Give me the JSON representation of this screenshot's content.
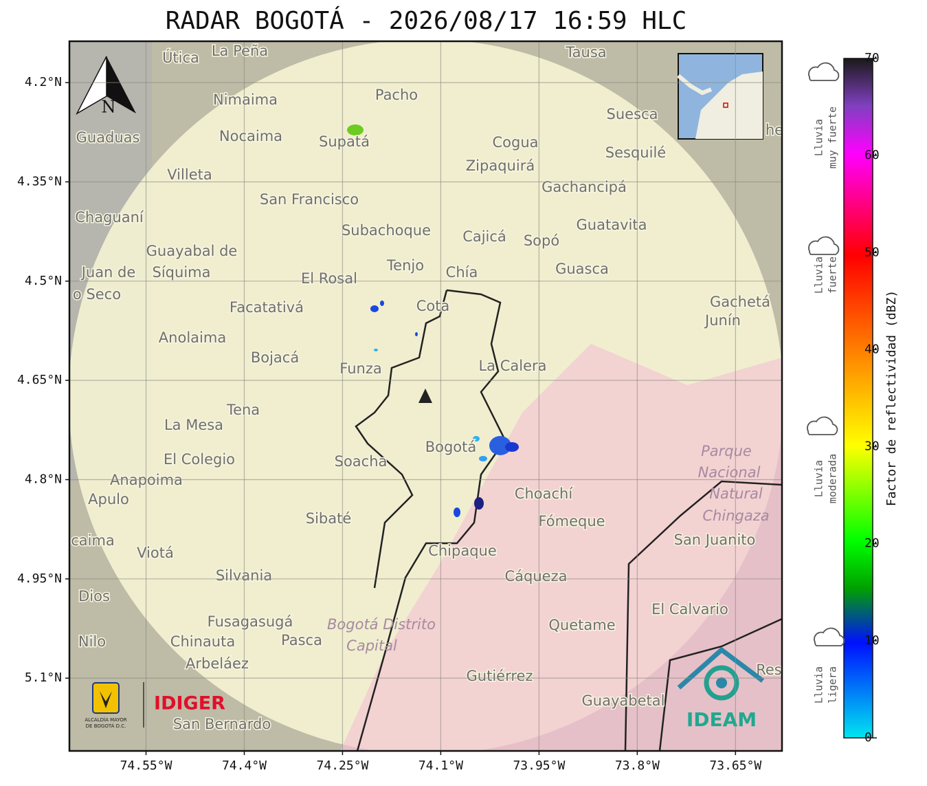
{
  "title": "RADAR BOGOTÁ - 2026/08/17 16:59 HLC",
  "map": {
    "lon_range": [
      -74.667,
      -73.579
    ],
    "lat_range": [
      4.1375,
      5.21
    ],
    "lon_ticks": [
      {
        "value": -74.55,
        "label": "74.55°W"
      },
      {
        "value": -74.4,
        "label": "74.4°W"
      },
      {
        "value": -74.25,
        "label": "74.25°W"
      },
      {
        "value": -74.1,
        "label": "74.1°W"
      },
      {
        "value": -73.95,
        "label": "73.95°W"
      },
      {
        "value": -73.8,
        "label": "73.8°W"
      },
      {
        "value": -73.65,
        "label": "73.65°W"
      }
    ],
    "lat_ticks": [
      {
        "value": 5.1,
        "label": "5.1°N"
      },
      {
        "value": 4.95,
        "label": "4.95°N"
      },
      {
        "value": 4.8,
        "label": "4.8°N"
      },
      {
        "value": 4.65,
        "label": "4.65°N"
      },
      {
        "value": 4.5,
        "label": "4.5°N"
      },
      {
        "value": 4.35,
        "label": "4.35°N"
      },
      {
        "value": 4.2,
        "label": "4.2°N"
      }
    ]
  },
  "places": [
    "La Peña",
    "Útica",
    "Tausa",
    "Pacho",
    "Nimaima",
    "Suesca",
    "Guaduas",
    "Nocaima",
    "Supatá",
    "Cogua",
    "Sesquilé",
    "Zipaquirá",
    "Villeta",
    "Gachancipá",
    "San Francisco",
    "Chaguaní",
    "Subachoque",
    "Guatavita",
    "Cajicá",
    "Sopó",
    "Guayabal de",
    "Síquima",
    "Tenjo",
    "Chía",
    "Guasca",
    "Juan de",
    "El Rosal",
    "o Seco",
    "Cota",
    "Facatativá",
    "Gachetá",
    "Junín",
    "Anolaima",
    "Bojacá",
    "Funza",
    "La Calera",
    "Tena",
    "La Mesa",
    "Bogotá",
    "El Colegio",
    "Soacha",
    "Anapoima",
    "Apulo",
    "Choachí",
    "Sibaté",
    "Fómeque",
    "San Juanito",
    "caima",
    "Viotá",
    "Chipaque",
    "Silvania",
    "Cáqueza",
    "Dios",
    "El Calvario",
    "Fusagasugá",
    "Quetame",
    "Nilo",
    "Chinauta",
    "Pasca",
    "Arbeláez",
    "Gutiérrez",
    "Res",
    "he",
    "Guayabetal",
    "San Bernardo"
  ],
  "park_labels": [
    "Parque",
    "Nacional",
    "Natural",
    "Chingaza",
    "Bogotá Distrito",
    "Capital"
  ],
  "north": "N",
  "logos": {
    "alcaldia": [
      "ALCALDÍA MAYOR",
      "DE BOGOTÁ D.C."
    ],
    "idiger": "IDIGER",
    "ideam": "IDEAM"
  },
  "colorbar": {
    "label": "Factor de reflectividad (dBZ)",
    "range": [
      0,
      70
    ],
    "ticks": [
      0,
      10,
      20,
      30,
      40,
      50,
      60,
      70
    ]
  },
  "rain_levels": [
    [
      "Lluvia",
      "muy fuerte"
    ],
    [
      "Lluvia",
      "fuerte"
    ],
    [
      "Lluvia",
      "moderada"
    ],
    [
      "Lluvia",
      "ligera"
    ]
  ]
}
